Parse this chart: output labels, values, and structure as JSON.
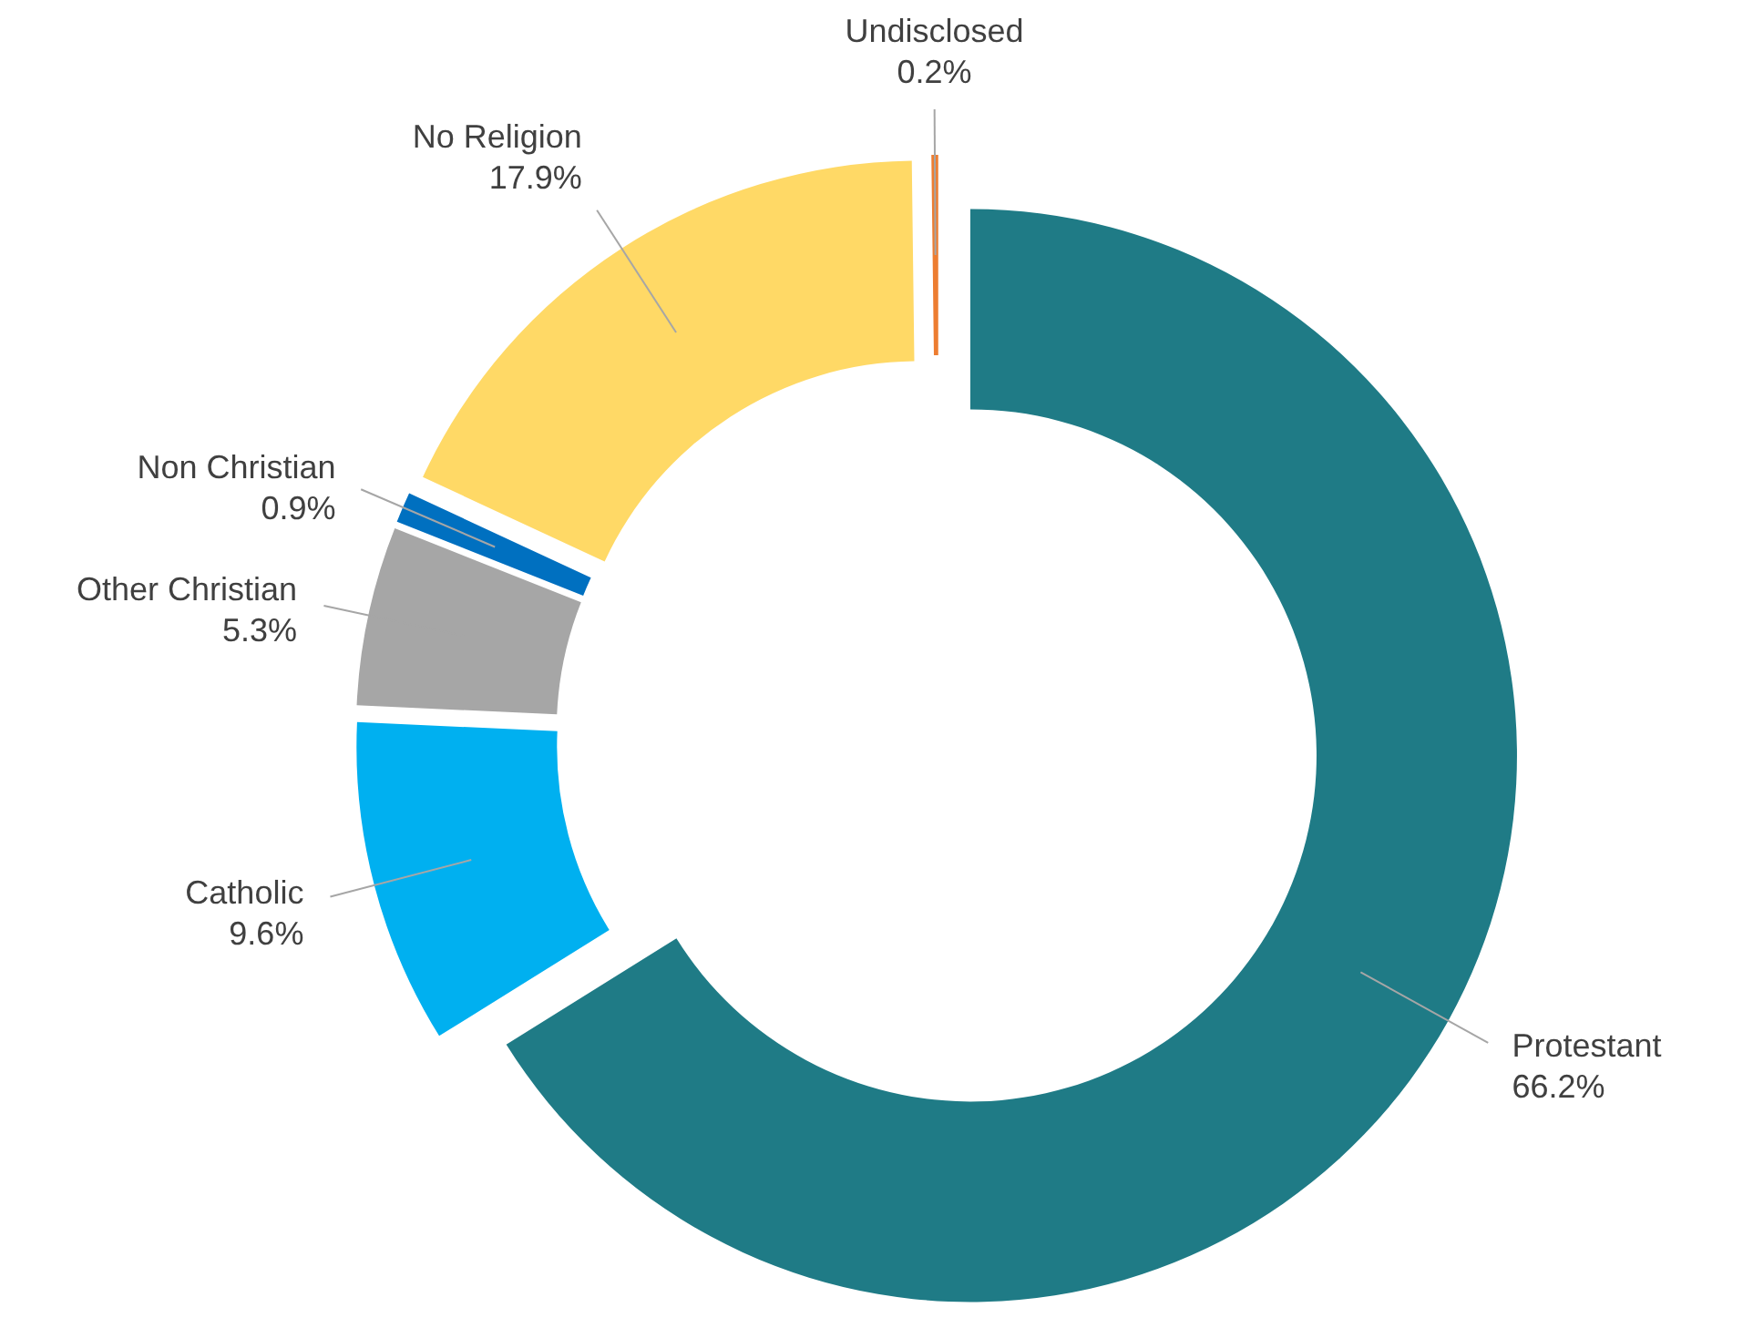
{
  "chart_data": {
    "type": "donut",
    "categories": [
      "Protestant",
      "Catholic",
      "Other Christian",
      "Non Christian",
      "No Religion",
      "Undisclosed"
    ],
    "values": [
      66.2,
      9.6,
      5.3,
      0.9,
      17.9,
      0.2
    ],
    "value_labels": [
      "66.2%",
      "9.6%",
      "5.3%",
      "0.9%",
      "17.9%",
      "0.2%"
    ],
    "colors": [
      "#1f7b86",
      "#00b0f0",
      "#a6a6a6",
      "#0070c0",
      "#ffd966",
      "#ed7d31"
    ]
  }
}
